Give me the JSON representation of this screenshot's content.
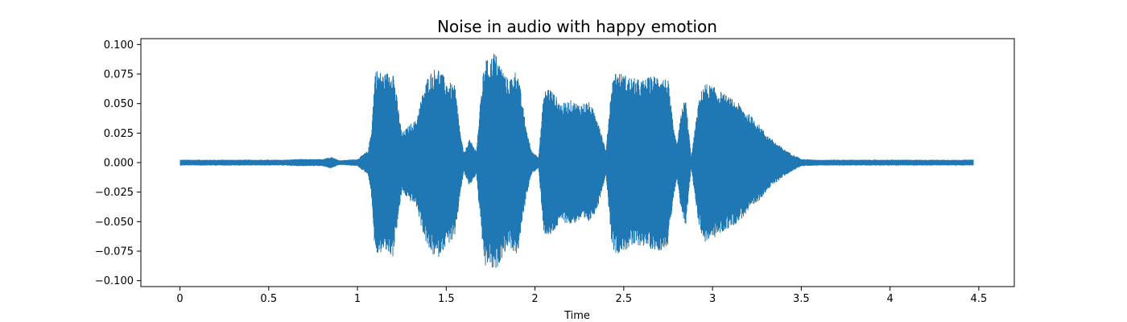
{
  "chart_data": {
    "type": "area",
    "title": "Noise in audio with happy emotion",
    "xlabel": "Time",
    "ylabel": "",
    "xlim": [
      -0.22,
      4.7
    ],
    "ylim": [
      -0.105,
      0.105
    ],
    "x_ticks": [
      0,
      0.5,
      1,
      1.5,
      2,
      2.5,
      3,
      3.5,
      4,
      4.5
    ],
    "x_tick_labels": [
      "0",
      "0.5",
      "1",
      "1.5",
      "2",
      "2.5",
      "3",
      "3.5",
      "4",
      "4.5"
    ],
    "y_ticks": [
      0.1,
      0.075,
      0.05,
      0.025,
      0,
      -0.025,
      -0.05,
      -0.075,
      -0.1
    ],
    "y_tick_labels": [
      "0.100",
      "0.075",
      "0.050",
      "0.025",
      "0.000",
      "−0.025",
      "−0.050",
      "−0.075",
      "−0.100"
    ],
    "grid": false,
    "color": "#1f77b4",
    "series": [
      {
        "x": [
          0.0,
          0.2,
          0.4,
          0.6,
          0.65,
          0.8,
          0.85,
          0.9,
          1.0,
          1.04,
          1.06,
          1.08,
          1.1,
          1.15,
          1.2,
          1.25,
          1.3,
          1.33,
          1.36,
          1.4,
          1.45,
          1.5,
          1.55,
          1.58,
          1.6,
          1.63,
          1.67,
          1.7,
          1.72,
          1.74,
          1.77,
          1.8,
          1.85,
          1.9,
          1.95,
          1.98,
          2.02,
          2.05,
          2.08,
          2.1,
          2.15,
          2.2,
          2.25,
          2.3,
          2.35,
          2.4,
          2.43,
          2.45,
          2.5,
          2.55,
          2.6,
          2.65,
          2.7,
          2.75,
          2.78,
          2.8,
          2.83,
          2.85,
          2.88,
          2.92,
          2.95,
          3.0,
          3.05,
          3.1,
          3.15,
          3.2,
          3.25,
          3.3,
          3.35,
          3.4,
          3.45,
          3.48,
          3.5,
          3.6,
          3.8,
          4.0,
          4.2,
          4.47
        ],
        "y": [
          0.0025,
          0.0025,
          0.0025,
          0.0025,
          0.003,
          0.003,
          0.005,
          0.002,
          0.003,
          0.008,
          0.01,
          0.03,
          0.08,
          0.075,
          0.08,
          0.025,
          0.033,
          0.036,
          0.055,
          0.075,
          0.082,
          0.07,
          0.065,
          0.025,
          0.008,
          0.02,
          0.01,
          0.065,
          0.09,
          0.085,
          0.095,
          0.085,
          0.07,
          0.08,
          0.03,
          0.01,
          0.005,
          0.06,
          0.065,
          0.06,
          0.05,
          0.053,
          0.05,
          0.052,
          0.04,
          0.01,
          0.065,
          0.078,
          0.075,
          0.072,
          0.07,
          0.073,
          0.075,
          0.07,
          0.03,
          0.015,
          0.05,
          0.053,
          0.005,
          0.05,
          0.068,
          0.065,
          0.06,
          0.055,
          0.05,
          0.042,
          0.035,
          0.025,
          0.018,
          0.012,
          0.007,
          0.005,
          0.003,
          0.0025,
          0.0025,
          0.0025,
          0.0025,
          0.0025
        ]
      }
    ]
  }
}
